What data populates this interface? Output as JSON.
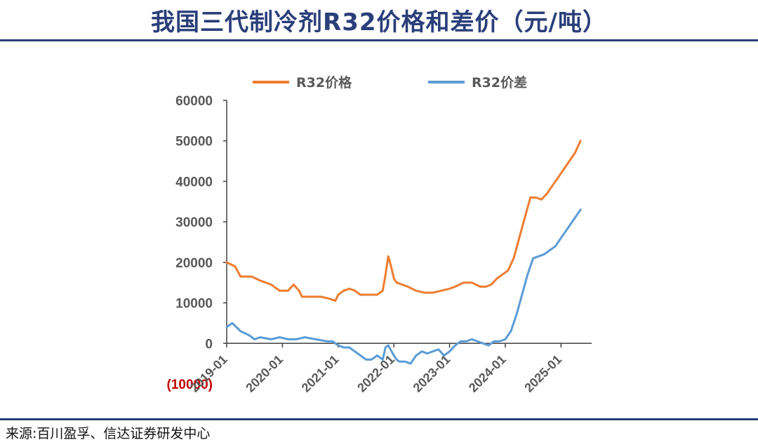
{
  "title": "我国三代制冷剂R32价格和差价（元/吨）",
  "source": "来源:百川盈孚、信达证券研发中心",
  "chart_data": {
    "type": "line",
    "title": "我国三代制冷剂R32价格和差价（元/吨）",
    "ylim": [
      -10000,
      60000
    ],
    "yticks": [
      -10000,
      0,
      10000,
      20000,
      30000,
      40000,
      50000,
      60000
    ],
    "ytick_labels": [
      "(10000)",
      "0",
      "10000",
      "20000",
      "30000",
      "40000",
      "50000",
      "60000"
    ],
    "xlim": [
      2019.0,
      2025.4
    ],
    "xticks": [
      2019.0,
      2020.0,
      2021.0,
      2022.0,
      2023.0,
      2024.0,
      2025.0
    ],
    "xtick_labels": [
      "2019-01",
      "2020-01",
      "2021-01",
      "2022-01",
      "2023-01",
      "2024-01",
      "2025-01"
    ],
    "legend_position": "top",
    "series": [
      {
        "name": "R32价格",
        "color": "#ED7D31",
        "x": [
          2019.0,
          2019.15,
          2019.25,
          2019.45,
          2019.6,
          2019.8,
          2019.95,
          2020.1,
          2020.2,
          2020.3,
          2020.35,
          2020.5,
          2020.7,
          2020.85,
          2020.95,
          2021.0,
          2021.1,
          2021.2,
          2021.3,
          2021.4,
          2021.6,
          2021.7,
          2021.8,
          2021.85,
          2021.9,
          2021.95,
          2022.0,
          2022.05,
          2022.15,
          2022.25,
          2022.4,
          2022.55,
          2022.7,
          2022.85,
          2023.0,
          2023.1,
          2023.25,
          2023.4,
          2023.55,
          2023.65,
          2023.75,
          2023.85,
          2023.95,
          2024.05,
          2024.15,
          2024.25,
          2024.35,
          2024.45,
          2024.55,
          2024.65,
          2024.75,
          2024.85,
          2024.95,
          2025.05,
          2025.15,
          2025.25,
          2025.35
        ],
        "values": [
          20000,
          19000,
          16500,
          16500,
          15500,
          14500,
          13000,
          13000,
          14500,
          13000,
          11500,
          11500,
          11500,
          11000,
          10500,
          12000,
          13000,
          13500,
          13000,
          12000,
          12000,
          12000,
          13000,
          17000,
          21500,
          19000,
          16000,
          15000,
          14500,
          14000,
          13000,
          12500,
          12500,
          13000,
          13500,
          14000,
          15000,
          15000,
          14000,
          14000,
          14500,
          16000,
          17000,
          18000,
          21000,
          26000,
          31000,
          36000,
          36000,
          35500,
          37000,
          39000,
          41000,
          43000,
          45000,
          47000,
          50000
        ]
      },
      {
        "name": "R32价差",
        "color": "#5B9BD5",
        "x": [
          2019.0,
          2019.1,
          2019.25,
          2019.4,
          2019.5,
          2019.6,
          2019.8,
          2019.95,
          2020.1,
          2020.25,
          2020.4,
          2020.6,
          2020.8,
          2020.9,
          2021.0,
          2021.1,
          2021.2,
          2021.3,
          2021.5,
          2021.6,
          2021.7,
          2021.8,
          2021.85,
          2021.9,
          2022.0,
          2022.05,
          2022.1,
          2022.2,
          2022.3,
          2022.4,
          2022.5,
          2022.6,
          2022.7,
          2022.8,
          2022.9,
          2023.0,
          2023.1,
          2023.2,
          2023.3,
          2023.4,
          2023.5,
          2023.6,
          2023.7,
          2023.8,
          2023.9,
          2024.0,
          2024.1,
          2024.2,
          2024.3,
          2024.4,
          2024.5,
          2024.6,
          2024.7,
          2024.8,
          2024.9,
          2025.0,
          2025.1,
          2025.2,
          2025.3,
          2025.35
        ],
        "values": [
          4000,
          5000,
          3000,
          2000,
          1000,
          1500,
          1000,
          1500,
          1000,
          1000,
          1500,
          1000,
          500,
          500,
          -500,
          -1000,
          -1000,
          -2000,
          -4000,
          -4000,
          -3000,
          -4000,
          -1000,
          -500,
          -3000,
          -4000,
          -4500,
          -4500,
          -5000,
          -3000,
          -2000,
          -2500,
          -2000,
          -1500,
          -3000,
          -2000,
          -500,
          500,
          500,
          1000,
          500,
          0,
          -500,
          500,
          500,
          1000,
          3000,
          7000,
          12000,
          17000,
          21000,
          21500,
          22000,
          23000,
          24000,
          26000,
          28000,
          30000,
          32000,
          33000
        ]
      }
    ]
  }
}
